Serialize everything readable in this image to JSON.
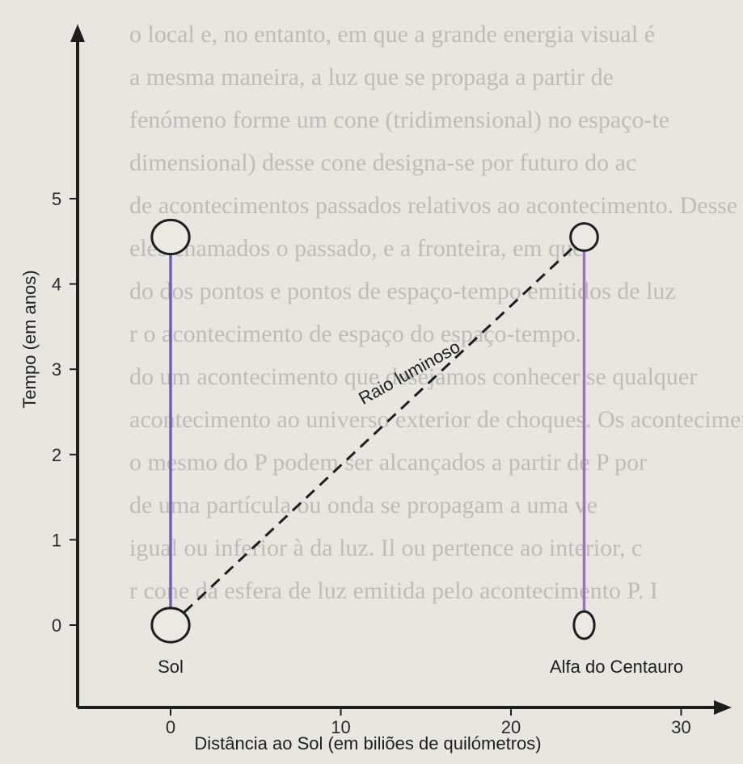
{
  "background_text": [
    "o local e, no entanto, em que a grande energia visual é",
    "a mesma maneira, a luz que se propaga a partir de",
    "fenómeno forme um cone (tridimensional) no espaço-te",
    "dimensional) desse cone designa-se por futuro do ac",
    "de acontecimentos passados relativos ao acontecimento. Desse",
    "eles chamados o passado, e a fronteira, em que",
    "do dos pontos e pontos de espaço-tempo emitidos de luz",
    "r o acontecimento de espaço do espaço-tempo.",
    "do um acontecimento que desejamos conhecer se qualquer",
    "acontecimento ao universo exterior de choques. Os acontecimentos",
    "o mesmo do P podem ser alcançados a partir de P por",
    "de uma partícula ou onda se propagam a uma ve",
    "igual ou inferior à da luz. Il ou pertence ao interior, c",
    "r cone da esfera de luz emitida pelo acontecimento P. I"
  ],
  "chart_data": {
    "type": "line",
    "title": "",
    "xlabel": "Distância ao Sol (em biliões de quilómetros)",
    "ylabel": "Tempo (em anos)",
    "xlim": [
      -5.5,
      33
    ],
    "ylim": [
      -0.85,
      5.85
    ],
    "x_ticks": [
      {
        "value": 0,
        "label": "0"
      },
      {
        "value": 10,
        "label": "10"
      },
      {
        "value": 20,
        "label": "20"
      },
      {
        "value": 30,
        "label": "30"
      }
    ],
    "y_ticks": [
      {
        "value": 0,
        "label": "0"
      },
      {
        "value": 1,
        "label": "1"
      },
      {
        "value": 2,
        "label": "2"
      },
      {
        "value": 3,
        "label": "3"
      },
      {
        "value": 4,
        "label": "4"
      },
      {
        "value": 5,
        "label": "5"
      }
    ],
    "series": [
      {
        "name": "Sol",
        "x": [
          0,
          0
        ],
        "y": [
          0,
          4.55
        ],
        "color": "#6a62b8",
        "style": "solid"
      },
      {
        "name": "Alfa do Centauro",
        "x": [
          24.3,
          24.3
        ],
        "y": [
          0,
          4.55
        ],
        "color": "#9a72c4",
        "style": "solid"
      },
      {
        "name": "Raio luminoso",
        "x": [
          0,
          24.3
        ],
        "y": [
          0,
          4.55
        ],
        "color": "#1e1e1e",
        "style": "dashed"
      }
    ],
    "markers": [
      {
        "x": 0,
        "y": 0,
        "rx": 1.1,
        "ry": 0.2
      },
      {
        "x": 0,
        "y": 4.55,
        "rx": 1.1,
        "ry": 0.2
      },
      {
        "x": 24.3,
        "y": 0,
        "rx": 0.6,
        "ry": 0.16
      },
      {
        "x": 24.3,
        "y": 4.55,
        "rx": 0.8,
        "ry": 0.16
      }
    ],
    "annotations": [
      {
        "text": "Sol",
        "x": 0,
        "y": -0.56
      },
      {
        "text": "Alfa do Centauro",
        "x": 26.2,
        "y": -0.56
      },
      {
        "text": "Raio luminoso",
        "x": 14.2,
        "y": 2.9,
        "rotate": -29
      }
    ],
    "grid": false,
    "legend": "none"
  }
}
